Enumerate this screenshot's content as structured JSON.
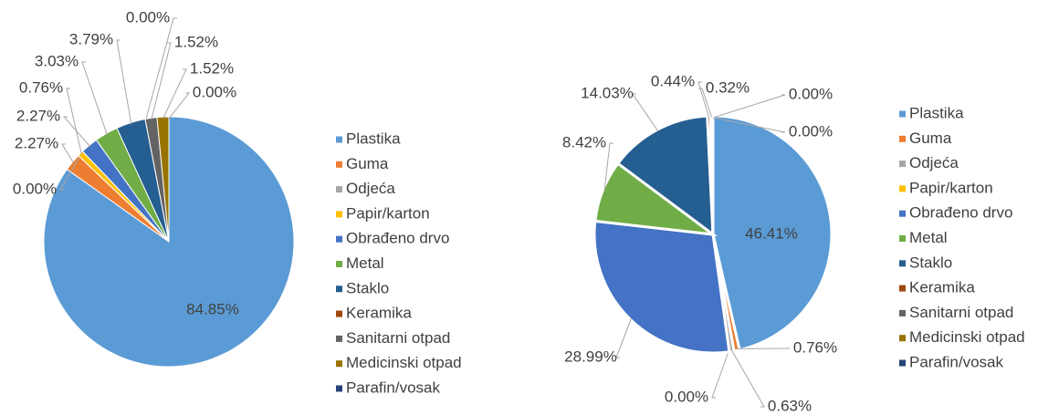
{
  "chart_data": [
    {
      "type": "pie",
      "categories": [
        "Plastika",
        "Guma",
        "Odjeća",
        "Papir/karton",
        "Obrađeno drvo",
        "Metal",
        "Staklo",
        "Keramika",
        "Sanitarni otpad",
        "Medicinski otpad",
        "Parafin/vosak"
      ],
      "values": [
        84.85,
        2.27,
        0.0,
        0.76,
        2.27,
        3.03,
        3.79,
        0.0,
        1.52,
        1.52,
        0.0
      ],
      "value_labels": [
        "84.85%",
        "2.27%",
        "0.00%",
        "0.76%",
        "2.27%",
        "3.03%",
        "3.79%",
        "0.00%",
        "1.52%",
        "1.52%",
        "0.00%"
      ],
      "colors": [
        "#5b9bd5",
        "#ed7d31",
        "#a5a5a5",
        "#ffc000",
        "#4472c4",
        "#70ad47",
        "#255e91",
        "#9e480e",
        "#636363",
        "#997300",
        "#264478"
      ]
    },
    {
      "type": "pie",
      "categories": [
        "Plastika",
        "Guma",
        "Odjeća",
        "Papir/karton",
        "Obrađeno drvo",
        "Metal",
        "Staklo",
        "Keramika",
        "Sanitarni otpad",
        "Medicinski otpad",
        "Parafin/vosak"
      ],
      "values": [
        46.41,
        0.76,
        0.63,
        0.0,
        28.99,
        8.42,
        14.03,
        0.44,
        0.32,
        0.0,
        0.0
      ],
      "value_labels": [
        "46.41%",
        "0.76%",
        "0.63%",
        "0.00%",
        "28.99%",
        "8.42%",
        "14.03%",
        "0.44%",
        "0.32%",
        "0.00%",
        "0.00%"
      ],
      "colors": [
        "#5b9bd5",
        "#ed7d31",
        "#a5a5a5",
        "#ffc000",
        "#4472c4",
        "#70ad47",
        "#255e91",
        "#9e480e",
        "#636363",
        "#997300",
        "#264478"
      ]
    }
  ]
}
